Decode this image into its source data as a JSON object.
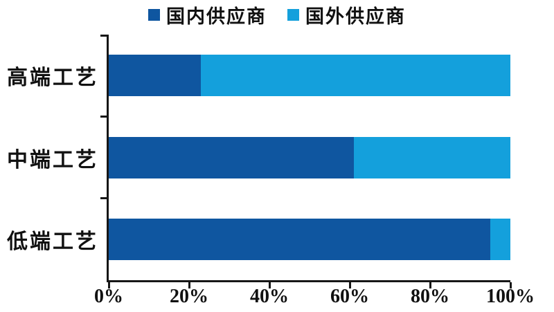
{
  "page": {
    "background": "#ffffff"
  },
  "chart_data": {
    "type": "bar",
    "orientation": "horizontal",
    "stacked": true,
    "title": "",
    "xlabel": "",
    "ylabel": "",
    "categories": [
      "高端工艺",
      "中端工艺",
      "低端工艺"
    ],
    "series": [
      {
        "name": "国内供应商",
        "color": "#0f56a0",
        "values": [
          23,
          61,
          95
        ]
      },
      {
        "name": "国外供应商",
        "color": "#14a0dc",
        "values": [
          77,
          39,
          5
        ]
      }
    ],
    "x_ticks": [
      "0%",
      "20%",
      "40%",
      "60%",
      "80%",
      "100%"
    ],
    "xlim": [
      0,
      100
    ],
    "unit": "%",
    "legend_position": "top",
    "grid": false,
    "axis_color": "#161616"
  }
}
